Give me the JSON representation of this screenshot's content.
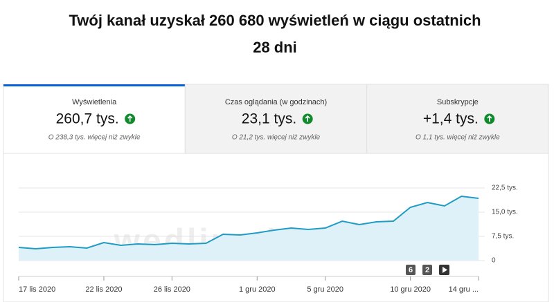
{
  "header": {
    "title_lines": [
      "Twój kanał uzyskał 260 680 wyświetleń w ciągu ostatnich",
      "28 dni"
    ]
  },
  "tabs": [
    {
      "label": "Wyświetlenia",
      "value": "260,7 tys.",
      "note": "O 238,3 tys. więcej niż zwykle",
      "selected": true
    },
    {
      "label": "Czas oglądania (w godzinach)",
      "value": "23,1 tys.",
      "note": "O 21,2 tys. więcej niż zwykle",
      "selected": false
    },
    {
      "label": "Subskrypcje",
      "value": "+1,4 tys.",
      "note": "O 1,1 tys. więcej niż zwykle",
      "selected": false
    }
  ],
  "controls": [
    "6",
    "2"
  ],
  "watermark": "wedlinydomowe.pl",
  "chart_data": {
    "type": "area",
    "categories": [
      "17 lis 2020",
      null,
      null,
      null,
      null,
      "22 lis 2020",
      null,
      null,
      null,
      "26 lis 2020",
      null,
      null,
      null,
      null,
      "1 gru 2020",
      null,
      null,
      null,
      "5 gru 2020",
      null,
      null,
      null,
      null,
      "10 gru 2020",
      null,
      null,
      null,
      "14 gru ..."
    ],
    "values": [
      4070,
      3640,
      4070,
      4290,
      3860,
      5570,
      4710,
      5140,
      4930,
      5360,
      5140,
      5360,
      8140,
      7930,
      8570,
      9430,
      10070,
      9640,
      10070,
      12210,
      11140,
      12000,
      12210,
      16500,
      18000,
      16930,
      19930,
      19290
    ],
    "color": "#1f9bc4",
    "fill": "#dff1f8",
    "ylim": [
      0,
      22500
    ],
    "yticks": [
      0,
      {
        "value": 7500,
        "label": "7,5 tys."
      },
      {
        "value": 15000,
        "label": "15,0 tys."
      },
      {
        "value": 22500,
        "label": "22,5 tys."
      }
    ],
    "grid": true
  }
}
